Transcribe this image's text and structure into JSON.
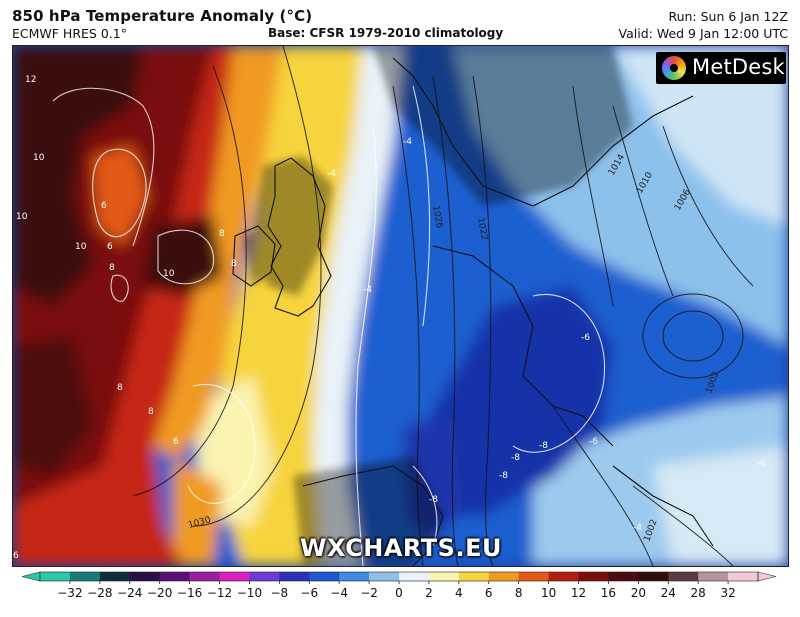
{
  "header": {
    "title": "850 hPa Temperature Anomaly (°C)",
    "model": "ECMWF HRES 0.1°",
    "base": "Base: CFSR 1979-2010 climatology",
    "run": "Run: Sun 6 Jan 12Z",
    "valid": "Valid: Wed 9 Jan 12:00 UTC"
  },
  "logo": {
    "text": "MetDesk"
  },
  "watermark": "WXCHARTS.EU",
  "colorbar": {
    "ticks": [
      "−32",
      "−28",
      "−24",
      "−20",
      "−16",
      "−12",
      "−10",
      "−8",
      "−6",
      "−4",
      "−2",
      "0",
      "2",
      "4",
      "6",
      "8",
      "10",
      "12",
      "16",
      "20",
      "24",
      "28",
      "32"
    ],
    "colors": [
      "#2bc9a5",
      "#167a7a",
      "#0d2d3d",
      "#2a0f45",
      "#5a0f76",
      "#9a1ea0",
      "#d91fc0",
      "#6e3bd7",
      "#2d2fb4",
      "#1f57cf",
      "#3f8be0",
      "#8fc0ec",
      "#e8f2f8",
      "#fbf3b0",
      "#f6d43e",
      "#f19a20",
      "#e35a18",
      "#b41e0c",
      "#7a0e0a",
      "#4d0a10",
      "#2f0d10",
      "#5b3a40",
      "#b8949a",
      "#f2c8d8"
    ]
  },
  "map": {
    "temperature_labels": [
      "12",
      "10",
      "10",
      "6",
      "6",
      "8",
      "8",
      "8",
      "10",
      "10",
      "8",
      "8",
      "6",
      "-4",
      "-4",
      "-4",
      "-6",
      "-6",
      "-8",
      "-8",
      "-8",
      "6",
      "-6",
      "-4",
      "-8"
    ],
    "pressure_labels": [
      "1026",
      "1022",
      "1014",
      "1010",
      "1006",
      "1002",
      "1030",
      "1002"
    ],
    "layers": [
      {
        "name": "warm-anomaly",
        "color": "#7a0e0a"
      },
      {
        "name": "strong-warm-anomaly",
        "color": "#3a0d0e"
      },
      {
        "name": "neutral-anomaly",
        "color": "#f6d43e"
      },
      {
        "name": "cold-anomaly",
        "color": "#1f57cf"
      },
      {
        "name": "strong-cold-anomaly",
        "color": "#1a2fa6"
      }
    ]
  }
}
